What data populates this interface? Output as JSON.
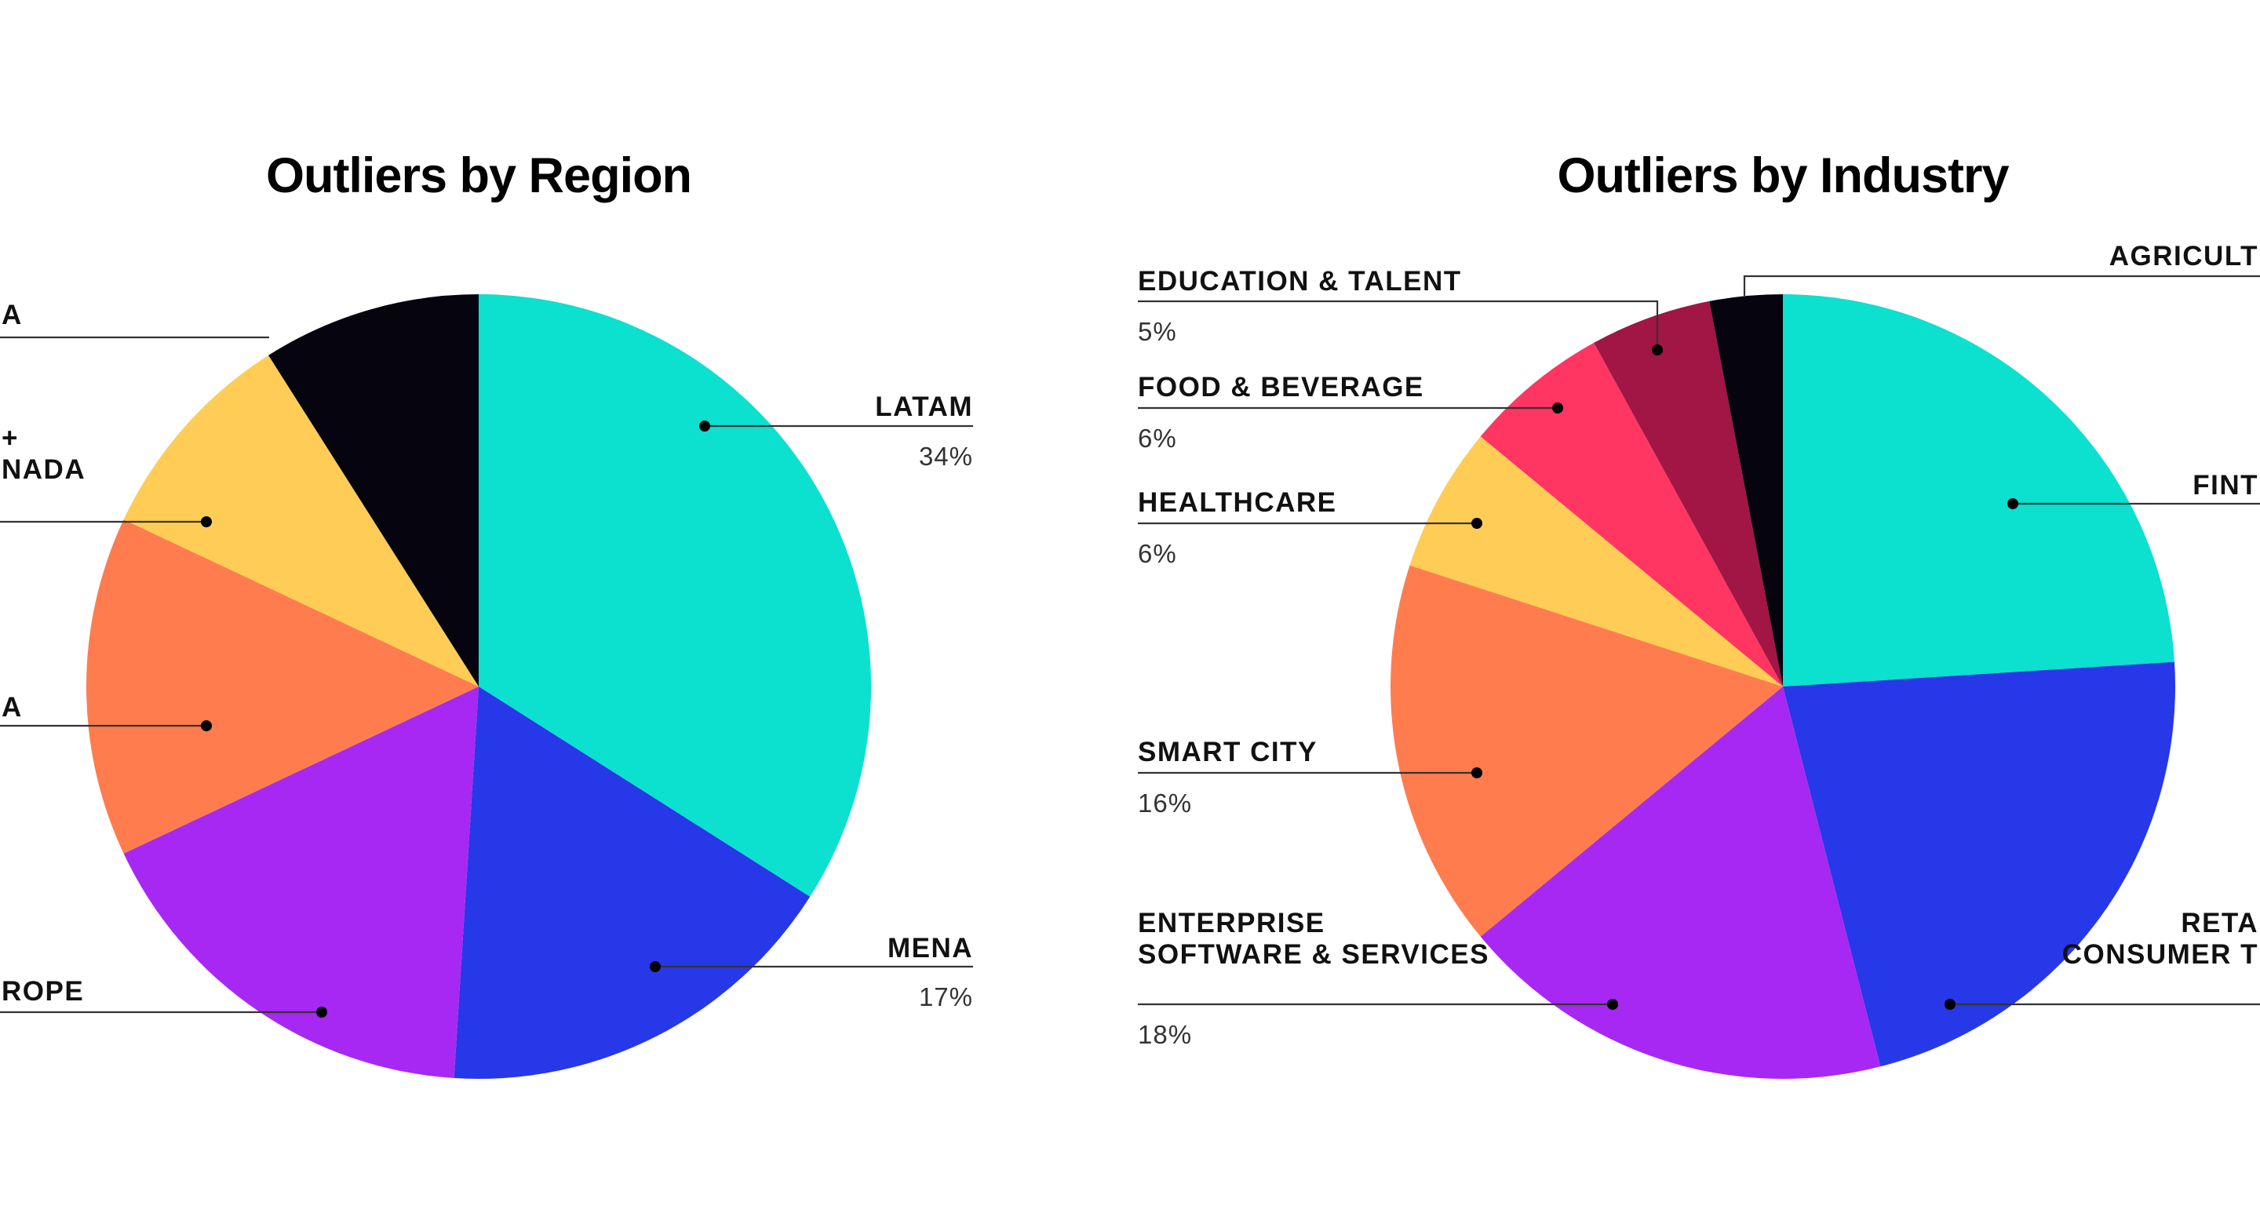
{
  "colors": {
    "teal": "#0ce0cf",
    "blue": "#2738e8",
    "purple": "#a728f2",
    "orange": "#ff7c4f",
    "yellow": "#ffcd55",
    "black": "#05040f",
    "pink": "#ff3562",
    "maroon": "#a11645",
    "text": "#111111"
  },
  "chart_data": [
    {
      "type": "pie",
      "title": "Outliers by Region",
      "slices": [
        {
          "labels": [
            "LATAM"
          ],
          "pct": "34%",
          "value": 34,
          "color": "#0ce0cf"
        },
        {
          "labels": [
            "MENA"
          ],
          "pct": "17%",
          "value": 17,
          "color": "#2738e8"
        },
        {
          "labels": [
            "ROPE"
          ],
          "pct": "",
          "value": 17,
          "color": "#a728f2"
        },
        {
          "labels": [
            "A"
          ],
          "pct": "",
          "value": 14,
          "color": "#ff7c4f"
        },
        {
          "labels": [
            "+",
            "NADA"
          ],
          "pct": "",
          "value": 9,
          "color": "#ffcd55"
        },
        {
          "labels": [
            "A"
          ],
          "pct": "",
          "value": 9,
          "color": "#05040f"
        }
      ]
    },
    {
      "type": "pie",
      "title": "Outliers by Industry",
      "slices": [
        {
          "labels": [
            "FINT"
          ],
          "pct": "",
          "value": 24,
          "color": "#0ce0cf"
        },
        {
          "labels": [
            "RETA",
            "CONSUMER T"
          ],
          "pct": "",
          "value": 22,
          "color": "#2738e8"
        },
        {
          "labels": [
            "ENTERPRISE",
            "SOFTWARE & SERVICES"
          ],
          "pct": "18%",
          "value": 18,
          "color": "#a728f2"
        },
        {
          "labels": [
            "SMART CITY"
          ],
          "pct": "16%",
          "value": 16,
          "color": "#ff7c4f"
        },
        {
          "labels": [
            "HEALTHCARE"
          ],
          "pct": "6%",
          "value": 6,
          "color": "#ffcd55"
        },
        {
          "labels": [
            "FOOD & BEVERAGE"
          ],
          "pct": "6%",
          "value": 6,
          "color": "#ff3562"
        },
        {
          "labels": [
            "EDUCATION & TALENT"
          ],
          "pct": "5%",
          "value": 5,
          "color": "#a11645"
        },
        {
          "labels": [
            "AGRICULT"
          ],
          "pct": "",
          "value": 3,
          "color": "#05040f"
        }
      ]
    }
  ]
}
